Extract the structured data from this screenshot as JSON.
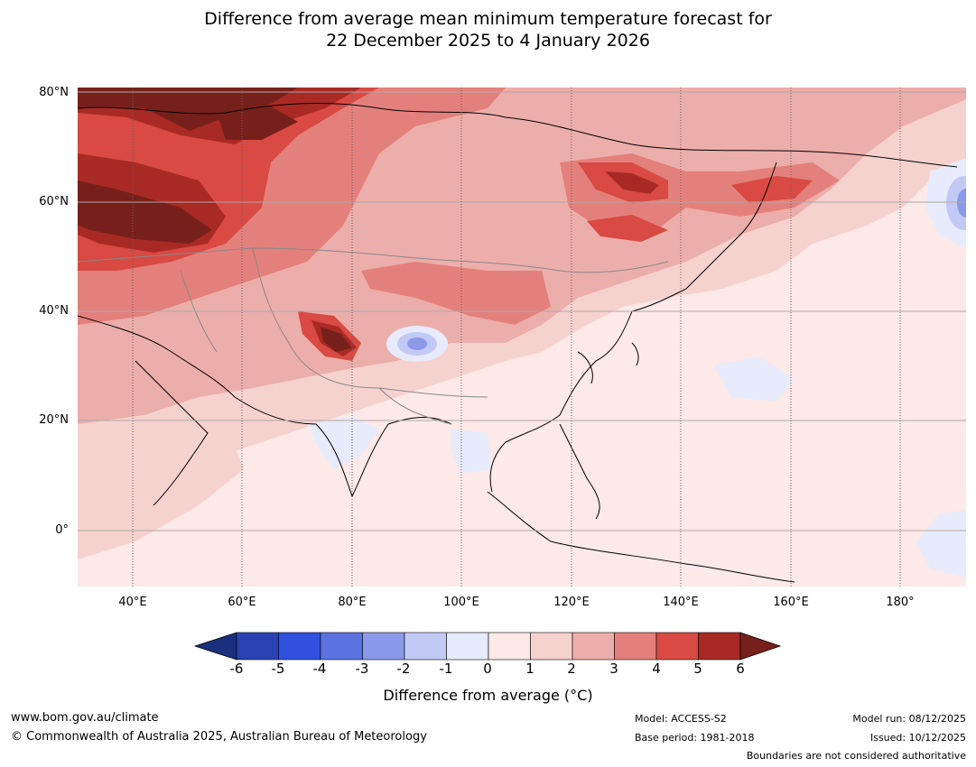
{
  "title": {
    "line1": "Difference from average mean minimum temperature forecast for",
    "line2": "22 December 2025 to 4 January 2026"
  },
  "axes": {
    "lat_labels": [
      "80°N",
      "60°N",
      "40°N",
      "20°N",
      "0°"
    ],
    "lon_labels": [
      "40°E",
      "60°E",
      "80°E",
      "100°E",
      "120°E",
      "140°E",
      "160°E",
      "180°"
    ]
  },
  "colorbar": {
    "title": "Difference from average (°C)",
    "ticks": [
      "-6",
      "-5",
      "-4",
      "-3",
      "-2",
      "-1",
      "0",
      "1",
      "2",
      "3",
      "4",
      "5",
      "6"
    ],
    "colors": [
      "#1a2f7e",
      "#2a41b5",
      "#3050e0",
      "#5b72e0",
      "#8a9ae8",
      "#c2c9f5",
      "#e7ebfb",
      "#fde9e7",
      "#f6d2cf",
      "#ecaeaa",
      "#e4807b",
      "#d84a43",
      "#a92a24",
      "#77201b"
    ]
  },
  "footer": {
    "website": "www.bom.gov.au/climate",
    "copyright": "© Commonwealth of Australia 2025, Australian Bureau of Meteorology",
    "model": "Model: ACCESS-S2",
    "base_period": "Base period: 1981-2018",
    "model_run": "Model run: 08/12/2025",
    "issued": "Issued: 10/12/2025",
    "disclaimer": "Boundaries are not considered authoritative"
  }
}
